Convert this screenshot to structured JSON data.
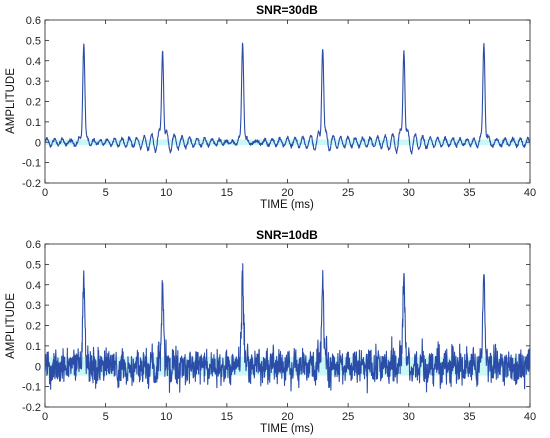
{
  "colors": {
    "signal": "#2b4da8",
    "noise_band": "#9ef2f2",
    "axes": "#222222"
  },
  "chart_data": [
    {
      "type": "line",
      "title": "SNR=30dB",
      "xlabel": "TIME (ms)",
      "ylabel": "AMPLITUDE",
      "xlim": [
        0,
        40
      ],
      "ylim": [
        -0.2,
        0.6
      ],
      "xticks": [
        "0",
        "5",
        "10",
        "15",
        "20",
        "25",
        "30",
        "35",
        "40"
      ],
      "yticks": [
        "-0.2",
        "-0.1",
        "0",
        "0.1",
        "0.2",
        "0.3",
        "0.4",
        "0.5",
        "0.6"
      ],
      "grid": false,
      "series": [
        {
          "peak_times_ms": [
            3.2,
            9.7,
            16.3,
            22.9,
            29.6,
            36.2
          ],
          "peak_amplitudes": [
            0.48,
            0.48,
            0.48,
            0.48,
            0.48,
            0.49
          ],
          "baseline_ripple_amplitude": 0.02,
          "noise_level": 0.003
        }
      ]
    },
    {
      "type": "line",
      "title": "SNR=10dB",
      "xlabel": "TIME (ms)",
      "ylabel": "AMPLITUDE",
      "xlim": [
        0,
        40
      ],
      "ylim": [
        -0.2,
        0.6
      ],
      "xticks": [
        "0",
        "5",
        "10",
        "15",
        "20",
        "25",
        "30",
        "35",
        "40"
      ],
      "yticks": [
        "-0.2",
        "-0.1",
        "0",
        "0.1",
        "0.2",
        "0.3",
        "0.4",
        "0.5",
        "0.6"
      ],
      "grid": false,
      "series": [
        {
          "peak_times_ms": [
            3.2,
            9.7,
            16.3,
            22.9,
            29.6,
            36.2
          ],
          "peak_amplitudes": [
            0.46,
            0.44,
            0.42,
            0.44,
            0.48,
            0.46
          ],
          "baseline_ripple_amplitude": 0.02,
          "noise_level": 0.03
        }
      ]
    }
  ]
}
